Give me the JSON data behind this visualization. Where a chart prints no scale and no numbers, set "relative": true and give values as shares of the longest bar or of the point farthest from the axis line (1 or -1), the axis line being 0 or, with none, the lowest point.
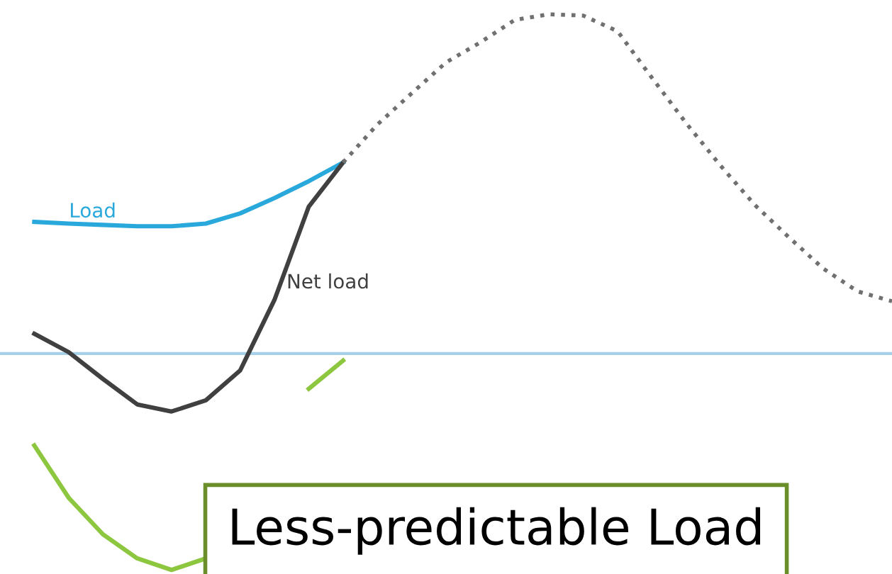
{
  "chart_data": {
    "type": "line",
    "relative": true,
    "legend": false,
    "marker": "none",
    "annotations": [
      "Less-predictable Load"
    ],
    "ref_lines": [
      {
        "axis": "y",
        "value": 0,
        "color": "#a6cfe8"
      }
    ],
    "categories": [
      null,
      null,
      null,
      null,
      null,
      null,
      null,
      null,
      null,
      null,
      null,
      null,
      null,
      null,
      null,
      null,
      null,
      null,
      null,
      null,
      null,
      null,
      null,
      null,
      null,
      null
    ],
    "series": [
      {
        "name": "Load",
        "color": "#29a8dc",
        "line_style": "solid",
        "values": [
          0.388,
          0.383,
          0.379,
          0.375,
          0.375,
          0.383,
          0.413,
          0.458,
          0.508,
          0.563,
          null,
          null,
          null,
          null,
          null,
          null,
          null,
          null,
          null,
          null,
          null,
          null,
          null,
          null,
          null,
          null
        ]
      },
      {
        "name": "Net load",
        "color": "#404040",
        "line_style": "solid",
        "values": [
          0.058,
          0.004,
          -0.075,
          -0.15,
          -0.171,
          -0.138,
          -0.05,
          0.158,
          0.433,
          0.563,
          null,
          null,
          null,
          null,
          null,
          null,
          null,
          null,
          null,
          null,
          null,
          null,
          null,
          null,
          null,
          null
        ]
      },
      {
        "color": "#707070",
        "line_style": "dotted",
        "values": [
          null,
          null,
          null,
          null,
          null,
          null,
          null,
          null,
          null,
          0.563,
          0.675,
          0.767,
          0.858,
          0.917,
          0.983,
          1.0,
          0.996,
          0.95,
          0.813,
          0.679,
          0.554,
          0.438,
          0.342,
          0.25,
          0.183,
          0.154
        ]
      },
      {
        "color": "#8dc63f",
        "line_style": "solid",
        "values": [
          -0.271,
          -0.425,
          -0.533,
          -0.604,
          -0.638,
          -0.604,
          null,
          null,
          null,
          null,
          null,
          null,
          null,
          null,
          null,
          null,
          null,
          null,
          null,
          null,
          null,
          null,
          null,
          null,
          null,
          null
        ]
      },
      {
        "color": "#8dc63f",
        "line_style": "solid",
        "values": [
          null,
          null,
          null,
          null,
          null,
          null,
          null,
          null,
          -0.104,
          -0.021,
          null,
          null,
          null,
          null,
          null,
          null,
          null,
          null,
          null,
          null,
          null,
          null,
          null,
          null,
          null,
          null
        ]
      }
    ]
  }
}
